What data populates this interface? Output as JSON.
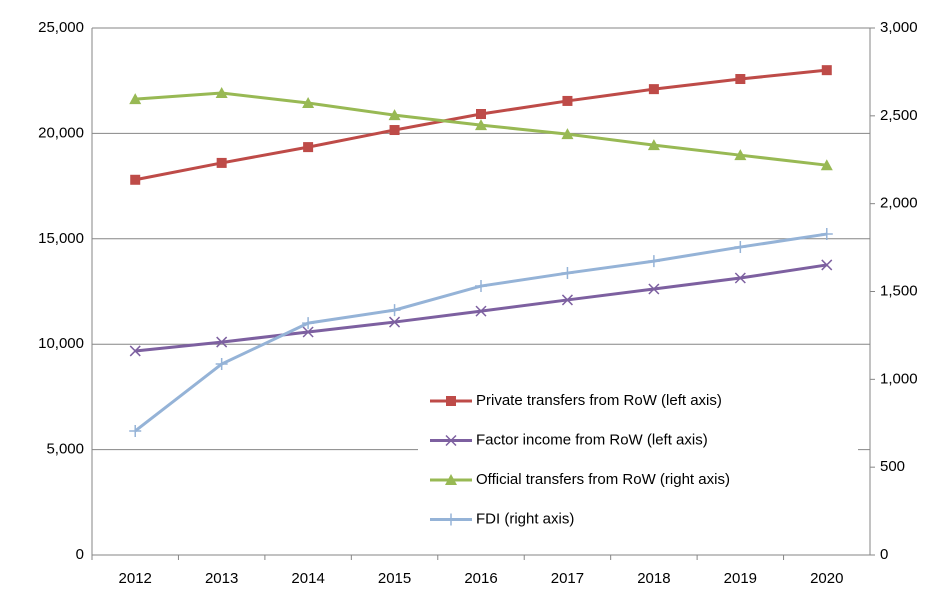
{
  "chart_data": {
    "type": "line",
    "categories": [
      "2012",
      "2013",
      "2014",
      "2015",
      "2016",
      "2017",
      "2018",
      "2019",
      "2020"
    ],
    "series": [
      {
        "name": "Private transfers from RoW (left axis)",
        "color": "#be4b48",
        "marker": "square",
        "axis": "y",
        "values": [
          17800,
          18600,
          19350,
          20160,
          20920,
          21540,
          22100,
          22580,
          23000
        ]
      },
      {
        "name": "Factor income from RoW (left axis)",
        "color": "#7d60a0",
        "marker": "x",
        "axis": "y",
        "values": [
          9680,
          10100,
          10580,
          11050,
          11570,
          12100,
          12620,
          13140,
          13760
        ]
      },
      {
        "name": "Official transfers from RoW (right axis)",
        "color": "#98b954",
        "marker": "triangle",
        "axis": "y2",
        "values": [
          2595,
          2630,
          2573,
          2504,
          2447,
          2396,
          2333,
          2276,
          2219
        ]
      },
      {
        "name": "FDI (right axis)",
        "color": "#95b3d7",
        "marker": "plus",
        "axis": "y2",
        "values": [
          706,
          1087,
          1320,
          1394,
          1531,
          1605,
          1673,
          1753,
          1827
        ]
      }
    ],
    "ylim": [
      0,
      25000
    ],
    "yticks": [
      0,
      {
        "value": 5000,
        "label": "5,000"
      },
      {
        "value": 10000,
        "label": "10,000"
      },
      {
        "value": 15000,
        "label": "15,000"
      },
      {
        "value": 20000,
        "label": "20,000"
      },
      {
        "value": 25000,
        "label": "25,000"
      }
    ],
    "y2lim": [
      0,
      3000
    ],
    "y2ticks": [
      0,
      500,
      {
        "value": 1000,
        "label": "1,000"
      },
      {
        "value": 1500,
        "label": "1,500"
      },
      {
        "value": 2000,
        "label": "2,000"
      },
      {
        "value": 2500,
        "label": "2,500"
      },
      {
        "value": 3000,
        "label": "3,000"
      }
    ],
    "grid": true
  }
}
